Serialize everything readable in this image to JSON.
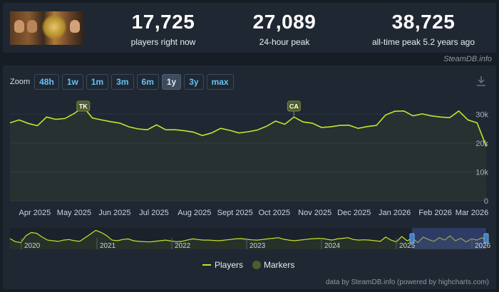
{
  "stats": [
    {
      "value": "17,725",
      "label": "players right now"
    },
    {
      "value": "27,089",
      "label": "24-hour peak"
    },
    {
      "value": "38,725",
      "label": "all-time peak 5.2 years ago"
    }
  ],
  "credit_top": "SteamDB.info",
  "zoom": {
    "label": "Zoom",
    "buttons": [
      "48h",
      "1w",
      "1m",
      "3m",
      "6m",
      "1y",
      "3y",
      "max"
    ],
    "active": "1y"
  },
  "credit_bottom": "data by SteamDB.info (powered by highcharts.com)",
  "colors": {
    "line": "#c5e42a",
    "marker": "#4e5d2c",
    "band": "#3b4a80"
  },
  "chart_data": {
    "type": "line",
    "xlabel": "",
    "ylabel": "",
    "x_ticks": [
      "Apr 2025",
      "May 2025",
      "Jun 2025",
      "Jul 2025",
      "Aug 2025",
      "Sept 2025",
      "Oct 2025",
      "Nov 2025",
      "Dec 2025",
      "Jan 2026",
      "Feb 2026",
      "Mar 2026"
    ],
    "y_ticks": [
      "0",
      "10k",
      "20k",
      "30k"
    ],
    "ylim": [
      0,
      30000
    ],
    "grid": true,
    "legend": {
      "position": "bottom",
      "entries": [
        "Players",
        "Markers"
      ]
    },
    "series": [
      {
        "name": "Players",
        "x": [
          "2025-03-13",
          "2025-03-20",
          "2025-03-27",
          "2025-04-03",
          "2025-04-10",
          "2025-04-17",
          "2025-04-24",
          "2025-05-01",
          "2025-05-08",
          "2025-05-15",
          "2025-05-22",
          "2025-05-29",
          "2025-06-05",
          "2025-06-12",
          "2025-06-19",
          "2025-06-26",
          "2025-07-03",
          "2025-07-10",
          "2025-07-17",
          "2025-07-24",
          "2025-07-31",
          "2025-08-07",
          "2025-08-14",
          "2025-08-21",
          "2025-08-28",
          "2025-09-04",
          "2025-09-11",
          "2025-09-18",
          "2025-09-25",
          "2025-10-02",
          "2025-10-09",
          "2025-10-16",
          "2025-10-23",
          "2025-10-30",
          "2025-11-06",
          "2025-11-13",
          "2025-11-20",
          "2025-11-27",
          "2025-12-04",
          "2025-12-11",
          "2025-12-18",
          "2025-12-25",
          "2026-01-01",
          "2026-01-08",
          "2026-01-15",
          "2026-01-22",
          "2026-01-29",
          "2026-02-05",
          "2026-02-12",
          "2026-02-19",
          "2026-02-26",
          "2026-03-05",
          "2026-03-12"
        ],
        "y": [
          27000,
          28000,
          26800,
          26000,
          29000,
          28200,
          28500,
          30200,
          32500,
          28700,
          28000,
          27400,
          26900,
          25600,
          24900,
          24600,
          26300,
          24600,
          24600,
          24300,
          23800,
          22600,
          23500,
          25100,
          24400,
          23500,
          23900,
          24500,
          25800,
          27600,
          26500,
          29000,
          27300,
          26900,
          25400,
          25600,
          26100,
          26200,
          25100,
          25700,
          26100,
          29700,
          31000,
          31100,
          29400,
          30100,
          29400,
          29000,
          28800,
          31100,
          28000,
          27000,
          18800
        ]
      }
    ],
    "markers": [
      {
        "label": "TK",
        "x": "2025-05-08"
      },
      {
        "label": "CA",
        "x": "2025-10-16"
      }
    ],
    "navigator": {
      "x_ticks": [
        "2020",
        "2021",
        "2022",
        "2023",
        "2024",
        "2025",
        "2026"
      ],
      "values": [
        35,
        25,
        22,
        45,
        55,
        52,
        40,
        30,
        28,
        26,
        30,
        32,
        28,
        26,
        38,
        50,
        62,
        55,
        45,
        30,
        28,
        32,
        34,
        28,
        26,
        25,
        24,
        26,
        28,
        30,
        27,
        25,
        26,
        30,
        34,
        32,
        30,
        30,
        29,
        28,
        30,
        32,
        34,
        35,
        33,
        31,
        30,
        32,
        34,
        36,
        38,
        33,
        30,
        28,
        30,
        32,
        34,
        35,
        36,
        33,
        30,
        34,
        36,
        38,
        32,
        30,
        31,
        30,
        28,
        26,
        40,
        30,
        24,
        42,
        28,
        36,
        22,
        40,
        32,
        26,
        38,
        30,
        44,
        28,
        36,
        24,
        34,
        30,
        38,
        26
      ]
    }
  }
}
